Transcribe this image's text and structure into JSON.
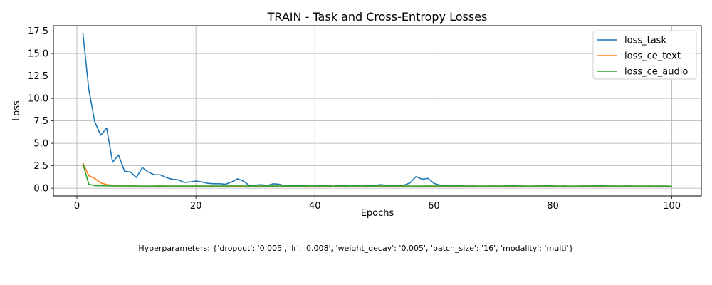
{
  "chart_data": {
    "type": "line",
    "title": "TRAIN - Task and Cross-Entropy Losses",
    "xlabel": "Epochs",
    "ylabel": "Loss",
    "xlim": [
      -3.95,
      104.95
    ],
    "ylim": [
      -0.86,
      18.1
    ],
    "xticks": [
      0,
      20,
      40,
      60,
      80,
      100
    ],
    "yticks": [
      0.0,
      2.5,
      5.0,
      7.5,
      10.0,
      12.5,
      15.0,
      17.5
    ],
    "ytick_labels": [
      "0.0",
      "2.5",
      "5.0",
      "7.5",
      "10.0",
      "12.5",
      "15.0",
      "17.5"
    ],
    "grid": true,
    "legend_position": "upper-right",
    "x": [
      1,
      2,
      3,
      4,
      5,
      6,
      7,
      8,
      9,
      10,
      11,
      12,
      13,
      14,
      15,
      16,
      17,
      18,
      19,
      20,
      21,
      22,
      23,
      24,
      25,
      26,
      27,
      28,
      29,
      30,
      31,
      32,
      33,
      34,
      35,
      36,
      37,
      38,
      39,
      40,
      41,
      42,
      43,
      44,
      45,
      46,
      47,
      48,
      49,
      50,
      51,
      52,
      53,
      54,
      55,
      56,
      57,
      58,
      59,
      60,
      61,
      62,
      63,
      64,
      65,
      66,
      67,
      68,
      69,
      70,
      71,
      72,
      73,
      74,
      75,
      76,
      77,
      78,
      79,
      80,
      81,
      82,
      83,
      84,
      85,
      86,
      87,
      88,
      89,
      90,
      91,
      92,
      93,
      94,
      95,
      96,
      97,
      98,
      99,
      100
    ],
    "series": [
      {
        "name": "loss_task",
        "color": "#1f77b4",
        "values": [
          17.3,
          11.0,
          7.4,
          5.9,
          6.7,
          2.9,
          3.7,
          1.9,
          1.8,
          1.2,
          2.3,
          1.8,
          1.5,
          1.5,
          1.2,
          1.0,
          0.95,
          0.65,
          0.7,
          0.8,
          0.7,
          0.55,
          0.5,
          0.5,
          0.45,
          0.7,
          1.05,
          0.8,
          0.3,
          0.35,
          0.4,
          0.3,
          0.5,
          0.45,
          0.25,
          0.35,
          0.3,
          0.28,
          0.25,
          0.25,
          0.28,
          0.35,
          0.22,
          0.3,
          0.3,
          0.25,
          0.28,
          0.25,
          0.3,
          0.3,
          0.4,
          0.35,
          0.3,
          0.25,
          0.35,
          0.6,
          1.3,
          1.0,
          1.1,
          0.55,
          0.35,
          0.3,
          0.25,
          0.3,
          0.25,
          0.25,
          0.25,
          0.2,
          0.25,
          0.25,
          0.22,
          0.25,
          0.3,
          0.25,
          0.25,
          0.22,
          0.25,
          0.25,
          0.28,
          0.25,
          0.22,
          0.25,
          0.2,
          0.22,
          0.25,
          0.25,
          0.25,
          0.28,
          0.25,
          0.25,
          0.22,
          0.25,
          0.25,
          0.22,
          0.15,
          0.25,
          0.22,
          0.25,
          0.22,
          0.2
        ]
      },
      {
        "name": "loss_ce_text",
        "color": "#ff7f0e",
        "values": [
          2.8,
          1.4,
          1.1,
          0.6,
          0.42,
          0.32,
          0.26,
          0.25,
          0.25,
          0.25,
          0.22,
          0.22,
          0.22,
          0.22,
          0.22,
          0.22,
          0.22,
          0.22,
          0.22,
          0.22,
          0.22,
          0.22,
          0.22,
          0.22,
          0.22,
          0.22,
          0.22,
          0.22,
          0.22,
          0.22,
          0.22,
          0.22,
          0.22,
          0.22,
          0.22,
          0.22,
          0.22,
          0.22,
          0.22,
          0.22,
          0.22,
          0.22,
          0.22,
          0.22,
          0.22,
          0.22,
          0.22,
          0.22,
          0.22,
          0.22,
          0.22,
          0.22,
          0.22,
          0.22,
          0.22,
          0.22,
          0.22,
          0.22,
          0.22,
          0.22,
          0.22,
          0.22,
          0.22,
          0.22,
          0.22,
          0.22,
          0.22,
          0.22,
          0.22,
          0.22,
          0.22,
          0.22,
          0.22,
          0.22,
          0.22,
          0.22,
          0.22,
          0.22,
          0.22,
          0.22,
          0.22,
          0.22,
          0.22,
          0.22,
          0.22,
          0.22,
          0.22,
          0.22,
          0.22,
          0.22,
          0.22,
          0.22,
          0.22,
          0.22,
          0.22,
          0.22,
          0.22,
          0.22,
          0.22,
          0.22
        ]
      },
      {
        "name": "loss_ce_audio",
        "color": "#2ca02c",
        "values": [
          2.75,
          0.45,
          0.28,
          0.28,
          0.26,
          0.25,
          0.25,
          0.25,
          0.26,
          0.25,
          0.24,
          0.24,
          0.25,
          0.26,
          0.25,
          0.25,
          0.25,
          0.24,
          0.25,
          0.26,
          0.25,
          0.25,
          0.25,
          0.25,
          0.25,
          0.26,
          0.26,
          0.25,
          0.24,
          0.25,
          0.25,
          0.24,
          0.26,
          0.25,
          0.25,
          0.25,
          0.24,
          0.25,
          0.25,
          0.25,
          0.25,
          0.26,
          0.24,
          0.25,
          0.25,
          0.24,
          0.25,
          0.25,
          0.24,
          0.25,
          0.26,
          0.25,
          0.25,
          0.25,
          0.25,
          0.25,
          0.24,
          0.25,
          0.26,
          0.25,
          0.25,
          0.25,
          0.25,
          0.26,
          0.25,
          0.24,
          0.25,
          0.25,
          0.25,
          0.25,
          0.25,
          0.26,
          0.25,
          0.25,
          0.25,
          0.24,
          0.25,
          0.25,
          0.26,
          0.25,
          0.25,
          0.25,
          0.24,
          0.25,
          0.25,
          0.25,
          0.26,
          0.25,
          0.25,
          0.25,
          0.25,
          0.24,
          0.25,
          0.25,
          0.25,
          0.25,
          0.25,
          0.24,
          0.25,
          0.22
        ]
      }
    ]
  },
  "hyperparameters_text": "Hyperparameters: {'dropout': '0.005', 'lr': '0.008', 'weight_decay': '0.005', 'batch_size': '16', 'modality': 'multi'}"
}
